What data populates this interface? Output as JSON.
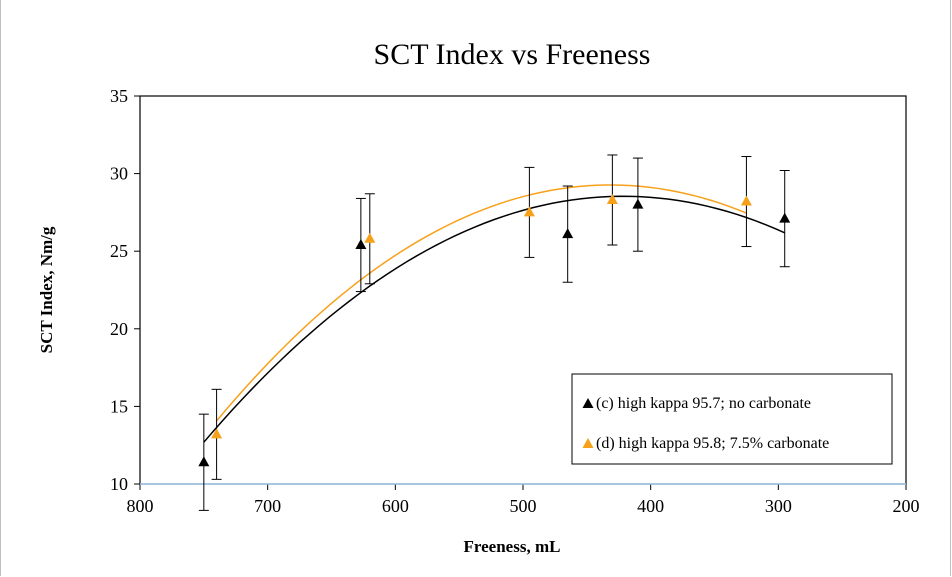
{
  "chart_data": {
    "type": "scatter",
    "title": "SCT Index vs Freeness",
    "xlabel": "Freeness, mL",
    "ylabel": "SCT Index, Nm/g",
    "xlim": [
      800,
      200
    ],
    "ylim": [
      10,
      35
    ],
    "x_reversed": true,
    "x_ticks": [
      "800",
      "700",
      "600",
      "500",
      "400",
      "300",
      "200"
    ],
    "y_ticks": [
      "10",
      "15",
      "20",
      "25",
      "30",
      "35"
    ],
    "grid": false,
    "legend_position": "bottom-right",
    "series": [
      {
        "name": "(c) high kappa 95.7; no carbonate",
        "color": "#000000",
        "marker": "triangle",
        "x": [
          750,
          627,
          465,
          410,
          295
        ],
        "y": [
          11.4,
          25.4,
          26.1,
          28.0,
          27.1
        ],
        "error": [
          3.1,
          3.0,
          3.1,
          3.0,
          3.1
        ],
        "trendline": "polynomial-2"
      },
      {
        "name": "(d) high kappa 95.8; 7.5% carbonate",
        "color": "#F7A11A",
        "marker": "triangle",
        "x": [
          740,
          620,
          495,
          430,
          325
        ],
        "y": [
          13.2,
          25.8,
          27.5,
          28.3,
          28.2
        ],
        "error": [
          2.9,
          2.9,
          2.9,
          2.9,
          2.9
        ],
        "trendline": "polynomial-2"
      }
    ]
  }
}
